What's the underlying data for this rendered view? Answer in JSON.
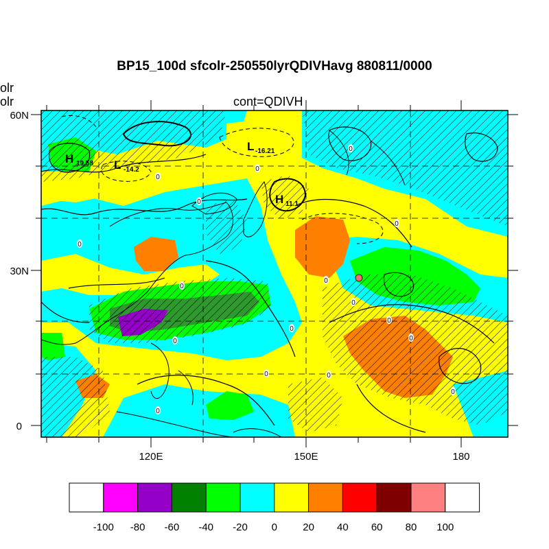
{
  "header": {
    "title": "BP15_100d sfcolr-250550lyrQDIVHavg  880811/0000",
    "subtitle": "cont=QDIVH",
    "left_cut_1": "olr",
    "left_cut_2": "olr"
  },
  "map": {
    "lat_labels": [
      "60N",
      "30N",
      "0"
    ],
    "lon_labels": [
      "120E",
      "150E",
      "180"
    ],
    "pressure_centers": [
      {
        "type": "H",
        "value": "19.58"
      },
      {
        "type": "L",
        "value": "-14.2"
      },
      {
        "type": "L",
        "value": "-16.21"
      },
      {
        "type": "H",
        "value": "11.1"
      }
    ],
    "zero_label": "0"
  },
  "colorbar": {
    "labels": [
      "-100",
      "-80",
      "-60",
      "-40",
      "-20",
      "0",
      "20",
      "40",
      "60",
      "80",
      "100"
    ],
    "colors": [
      "#ffffff",
      "#ff00ff",
      "#9400c8",
      "#007f00",
      "#00ff00",
      "#00ffff",
      "#ffff00",
      "#ff8000",
      "#ff0000",
      "#7f0000",
      "#ff8080",
      "#ffffff"
    ]
  }
}
